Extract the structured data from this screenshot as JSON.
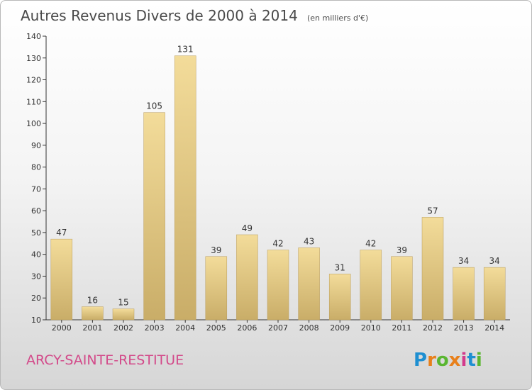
{
  "chart_data": {
    "type": "bar",
    "title": "Autres Revenus Divers de 2000 à 2014",
    "subtitle": "(en milliers d'€)",
    "categories": [
      "2000",
      "2001",
      "2002",
      "2003",
      "2004",
      "2005",
      "2006",
      "2007",
      "2008",
      "2009",
      "2010",
      "2011",
      "2012",
      "2013",
      "2014"
    ],
    "values": [
      47,
      16,
      15,
      105,
      131,
      39,
      49,
      42,
      43,
      31,
      42,
      39,
      57,
      34,
      34
    ],
    "ylim": [
      10,
      140
    ],
    "yticks": [
      10,
      20,
      30,
      40,
      50,
      60,
      70,
      80,
      90,
      100,
      110,
      120,
      130,
      140
    ],
    "grid": false,
    "bar_colors": {
      "light": "#f3dc9a",
      "dark": "#c9ad68"
    }
  },
  "commune_name": "ARCY-SAINTE-RESTITUE",
  "logo": {
    "text": "Proxiti",
    "letter_colors": [
      "#1e8fd1",
      "#e8801b",
      "#5ab631",
      "#e8801b",
      "#d33a8c",
      "#1e8fd1",
      "#5ab631"
    ]
  }
}
